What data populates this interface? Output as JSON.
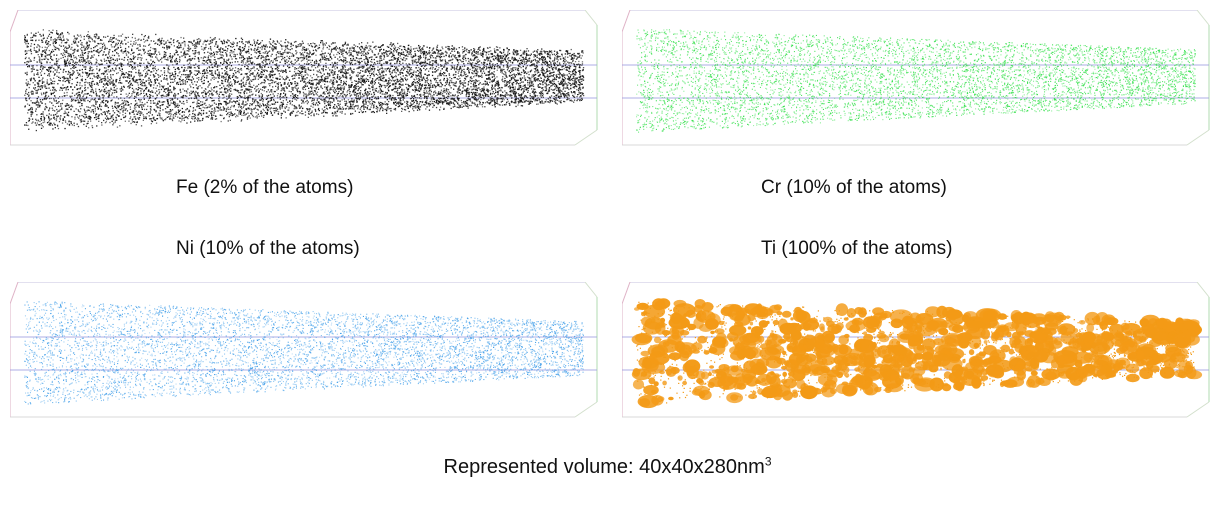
{
  "figure": {
    "panels": [
      {
        "element": "Fe",
        "label": "Fe (2% of the atoms)",
        "color": "#111111",
        "style": "dense-fine"
      },
      {
        "element": "Cr",
        "label": "Cr (10% of the atoms)",
        "color": "#33e04a",
        "style": "fine"
      },
      {
        "element": "Ni",
        "label": "Ni (10% of the atoms)",
        "color": "#3a9be8",
        "style": "fine-mottled"
      },
      {
        "element": "Ti",
        "label": "Ti (100% of the atoms)",
        "color": "#f39a16",
        "style": "clustered"
      }
    ],
    "caption_text": "Represented volume: 40x40x280nm",
    "caption_superscript": "3"
  }
}
